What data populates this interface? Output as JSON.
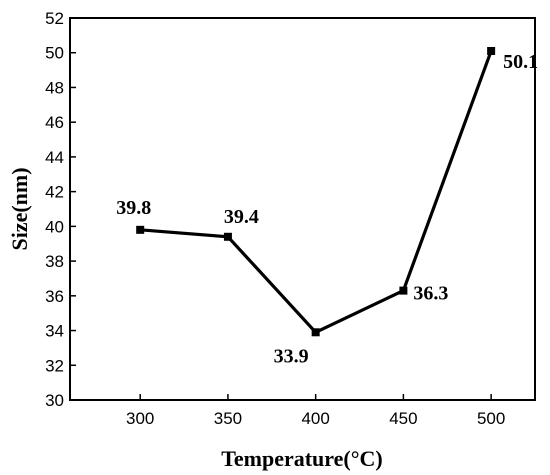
{
  "chart_data": {
    "type": "line",
    "xlabel": "Temperature(°C)",
    "ylabel": "Size(nm)",
    "x": [
      300,
      350,
      400,
      450,
      500
    ],
    "series": [
      {
        "values": [
          39.8,
          39.4,
          33.9,
          36.3,
          50.1
        ]
      }
    ],
    "data_labels": [
      "39.8",
      "39.4",
      "33.9",
      "36.3",
      "50.1"
    ],
    "xticks": [
      300,
      350,
      400,
      450,
      500
    ],
    "yticks": [
      30,
      32,
      34,
      36,
      38,
      40,
      42,
      44,
      46,
      48,
      50,
      52
    ],
    "xlim": [
      260,
      525
    ],
    "ylim": [
      30,
      52
    ],
    "grid": false,
    "colors": {
      "line": "#000000",
      "marker": "#000000"
    }
  }
}
